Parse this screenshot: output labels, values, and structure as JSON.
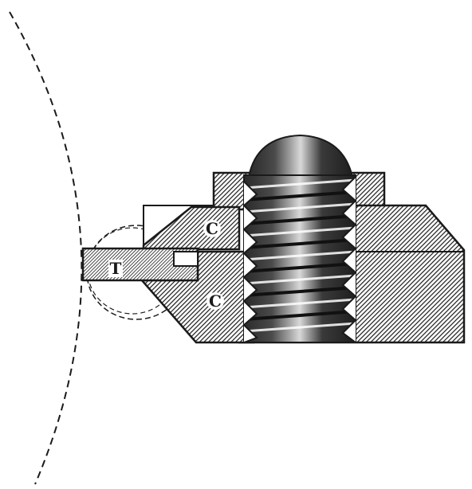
{
  "figure": {
    "labels": {
      "tool": "T",
      "clamp_upper": "C",
      "clamp_lower": "C"
    },
    "colors": {
      "ink": "#1a1a1a",
      "background": "#ffffff"
    }
  }
}
